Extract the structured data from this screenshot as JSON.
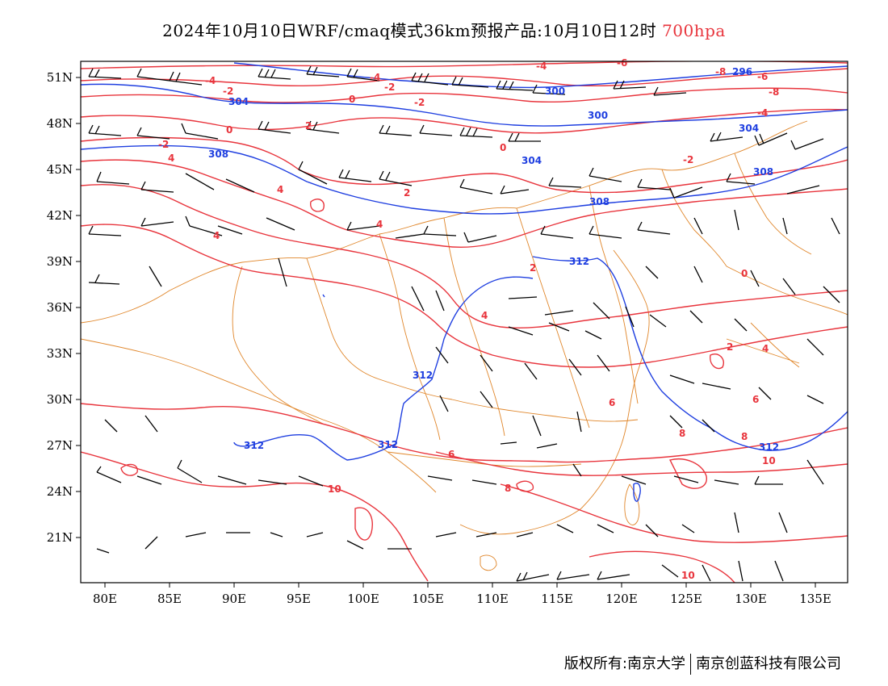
{
  "title": {
    "main": "2024年10月10日WRF/cmaq模式36km预报产品:10月10日12时",
    "level": "700hpa"
  },
  "axes": {
    "x_ticks": [
      "80E",
      "85E",
      "90E",
      "95E",
      "100E",
      "105E",
      "110E",
      "115E",
      "120E",
      "125E",
      "130E",
      "135E"
    ],
    "y_ticks": [
      "51N",
      "48N",
      "45N",
      "42N",
      "39N",
      "36N",
      "33N",
      "30N",
      "27N",
      "24N",
      "21N"
    ]
  },
  "colors": {
    "temperature": "#e8343c",
    "geopotential": "#1f3fe0",
    "boundary": "#e0862a",
    "wind": "#000000"
  },
  "height_labels": [
    "296",
    "300",
    "300",
    "304",
    "304",
    "304",
    "308",
    "308",
    "308",
    "312",
    "312",
    "312",
    "312",
    "312"
  ],
  "temp_labels": [
    "-8",
    "-6",
    "-4",
    "-4",
    "-2",
    "-2",
    "-2",
    "-2",
    "0",
    "0",
    "0",
    "2",
    "2",
    "2",
    "-4",
    "-4",
    "-8",
    "-6",
    "4",
    "4",
    "4",
    "4",
    "4",
    "4",
    "2",
    "6",
    "6",
    "6",
    "8",
    "8",
    "8",
    "10",
    "10",
    "10",
    "0",
    "-2"
  ],
  "footer": {
    "left": "版权所有:南京大学",
    "right": "南京创蓝科技有限公司"
  }
}
